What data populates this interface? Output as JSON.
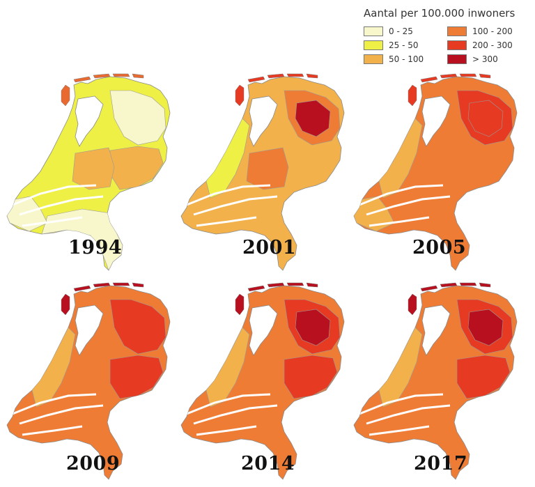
{
  "legend": {
    "title": "Aantal per 100.000 inwoners",
    "items": [
      {
        "label": "0 - 25",
        "color": "#f8f7cc"
      },
      {
        "label": "25 - 50",
        "color": "#eef045"
      },
      {
        "label": "50 - 100",
        "color": "#f2b14a"
      },
      {
        "label": "100 - 200",
        "color": "#ee7c35"
      },
      {
        "label": "200 - 300",
        "color": "#e73a22"
      },
      {
        "label": "> 300",
        "color": "#b8101e"
      }
    ]
  },
  "maps": [
    {
      "year": "1994",
      "base": "#eef045",
      "islands": "#e86a30",
      "patches": [
        {
          "region": "south",
          "color": "#f8f7cc"
        },
        {
          "region": "southwest",
          "color": "#f8f7cc"
        },
        {
          "region": "northeast",
          "color": "#f8f7cc"
        },
        {
          "region": "east",
          "color": "#f2b14a"
        },
        {
          "region": "center",
          "color": "#f2b14a"
        }
      ]
    },
    {
      "year": "2001",
      "base": "#f2b14a",
      "islands": "#e73a22",
      "patches": [
        {
          "region": "west",
          "color": "#eef045"
        },
        {
          "region": "northeast",
          "color": "#ee7c35"
        },
        {
          "region": "center",
          "color": "#ee7c35"
        },
        {
          "region": "core",
          "color": "#b8101e"
        }
      ]
    },
    {
      "year": "2005",
      "base": "#ee7c35",
      "islands": "#e73a22",
      "patches": [
        {
          "region": "west",
          "color": "#f2b14a"
        },
        {
          "region": "southwest",
          "color": "#f2b14a"
        },
        {
          "region": "northeast",
          "color": "#e73a22"
        },
        {
          "region": "core",
          "color": "#e73a22"
        }
      ]
    },
    {
      "year": "2009",
      "base": "#ee7c35",
      "islands": "#b8101e",
      "patches": [
        {
          "region": "west",
          "color": "#f2b14a"
        },
        {
          "region": "northeast",
          "color": "#e73a22"
        },
        {
          "region": "east",
          "color": "#e73a22"
        }
      ]
    },
    {
      "year": "2014",
      "base": "#ee7c35",
      "islands": "#b8101e",
      "patches": [
        {
          "region": "west",
          "color": "#f2b14a"
        },
        {
          "region": "northeast",
          "color": "#e73a22"
        },
        {
          "region": "east",
          "color": "#e73a22"
        },
        {
          "region": "core",
          "color": "#b8101e"
        }
      ]
    },
    {
      "year": "2017",
      "base": "#ee7c35",
      "islands": "#b8101e",
      "patches": [
        {
          "region": "west",
          "color": "#f2b14a"
        },
        {
          "region": "northeast",
          "color": "#e73a22"
        },
        {
          "region": "east",
          "color": "#e73a22"
        },
        {
          "region": "core",
          "color": "#b8101e"
        }
      ]
    }
  ]
}
